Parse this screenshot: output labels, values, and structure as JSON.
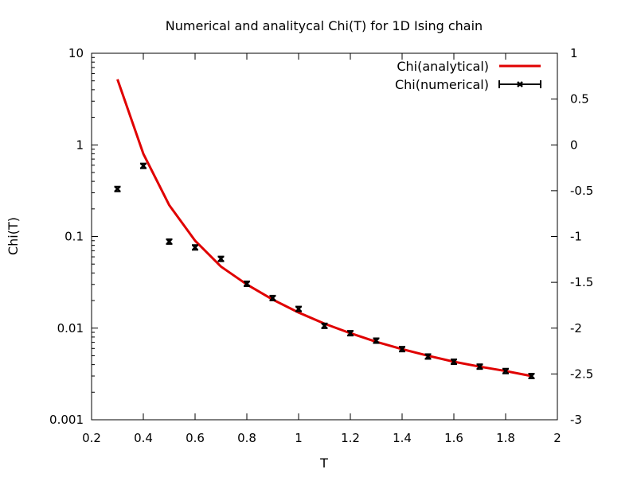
{
  "chart_data": {
    "type": "line",
    "title": "Numerical and analitycal Chi(T) for 1D Ising chain",
    "xlabel": "T",
    "ylabel": "Chi(T)",
    "xlim": [
      0.2,
      2.0
    ],
    "ylim": [
      0.001,
      10
    ],
    "yscale": "log",
    "y2lim": [
      -3,
      1
    ],
    "grid": false,
    "legend_position": "top-right",
    "x_ticks": [
      "0.2",
      "0.4",
      "0.6",
      "0.8",
      "1",
      "1.2",
      "1.4",
      "1.6",
      "1.8",
      "2"
    ],
    "y_ticks": [
      "0.001",
      "0.01",
      "0.1",
      "1",
      "10"
    ],
    "y2_ticks": [
      "-3",
      "-2.5",
      "-2",
      "-1.5",
      "-1",
      "-0.5",
      "0",
      "0.5",
      "1"
    ],
    "series": [
      {
        "name": "Chi(analytical)",
        "style": "line",
        "color": "#e00000",
        "x": [
          0.3,
          0.4,
          0.5,
          0.6,
          0.7,
          0.8,
          0.9,
          1.0,
          1.1,
          1.2,
          1.3,
          1.4,
          1.5,
          1.6,
          1.7,
          1.8,
          1.9
        ],
        "y": [
          5.2,
          0.8,
          0.22,
          0.09,
          0.047,
          0.03,
          0.0205,
          0.0148,
          0.0112,
          0.0088,
          0.0071,
          0.0059,
          0.005,
          0.0043,
          0.0038,
          0.0034,
          0.003
        ]
      },
      {
        "name": "Chi(numerical)",
        "style": "points-errorbars",
        "color": "#000000",
        "x": [
          0.3,
          0.4,
          0.5,
          0.6,
          0.7,
          0.8,
          0.9,
          1.0,
          1.1,
          1.2,
          1.3,
          1.4,
          1.5,
          1.6,
          1.7,
          1.8,
          1.9
        ],
        "y": [
          0.33,
          0.59,
          0.088,
          0.076,
          0.057,
          0.0305,
          0.0213,
          0.0162,
          0.0106,
          0.0088,
          0.0073,
          0.0059,
          0.0049,
          0.0043,
          0.0038,
          0.0034,
          0.003
        ]
      }
    ]
  }
}
